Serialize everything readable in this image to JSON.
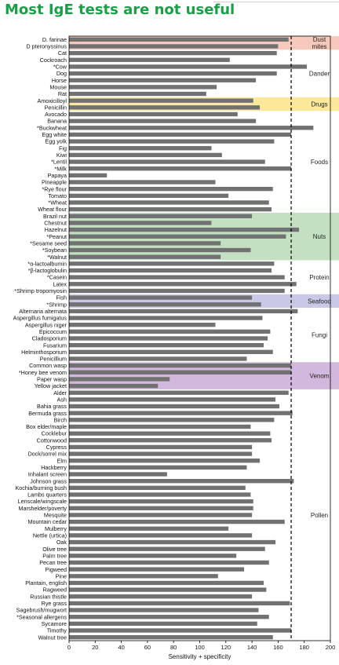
{
  "title": "Most IgE tests are not useful",
  "colors": {
    "title": "#1a9f48",
    "bar": "#717171",
    "dust_mites": "#f7c8bc",
    "drugs": "#fbe89a",
    "nuts": "#c3e1c2",
    "seafood": "#c9c8e6",
    "venom": "#d2b8dc",
    "reference_line": "#000000"
  },
  "chart_data": {
    "type": "bar",
    "orientation": "horizontal",
    "xlabel": "Sensitivity + specificity",
    "ylabel": "",
    "xlim": [
      0,
      200
    ],
    "xticks": [
      0,
      20,
      40,
      60,
      80,
      100,
      120,
      140,
      160,
      180,
      200
    ],
    "reference_line": 170,
    "categories": [
      "D. farinae",
      "D pteronyssinus",
      "Cat",
      "Cockroach",
      "*Cow",
      "Dog",
      "Horse",
      "Mouse",
      "Rat",
      "Amoxicilloyl",
      "Penicillin",
      "Avocado",
      "Banana",
      "*Buckwheat",
      "Egg white",
      "Egg yolk",
      "Fig",
      "Kiwi",
      "*Lentil",
      "*Milk",
      "Papaya",
      "Pineapple",
      "*Rye flour",
      "Tomato",
      "*Wheat",
      "Wheat flour",
      "Brazil nut",
      "Chestnut",
      "Hazelnut",
      "*Peanut",
      "*Sesame seed",
      "*Soybean",
      "*Walnut",
      "*α-lactoalbumin",
      "*β-lactoglobulin",
      "*Casein",
      "Latex",
      "*Shrimp tropomyosin",
      "Fish",
      "*Shrimp",
      "Alternaria alternata",
      "Aspergillus fumigatus",
      "Aspergillus niger",
      "Epicoccum",
      "Cladosporium",
      "Fusarium",
      "Helminthosporium",
      "Penicillium",
      "Common wasp",
      "*Honey bee venom",
      "Paper wasp",
      "Yellow jacket",
      "Alder",
      "Ash",
      "Bahia grass",
      "Bermuda grass",
      "Birch",
      "Box elder/maple",
      "Cocklebur",
      "Cottonwood",
      "Cypress",
      "Dock/sorrel mix",
      "Elm",
      "Hackberry",
      "Inhalant screen",
      "Johnson grass",
      "Kochia/burning bush",
      "Lambs quarters",
      "Lenscale/wingscale",
      "Marshelder/poverty",
      "Mesquite",
      "Mountain cedar",
      "Mulberry",
      "Nettle (urtica)",
      "Oak",
      "Olive tree",
      "Palm tree",
      "Pecan tree",
      "Pigweed",
      "Pine",
      "Plantain, english",
      "Ragweed",
      "Russian thistle",
      "Rye grass",
      "Sagebrush/mugwort",
      "*Seasonal allergens",
      "Sycamore",
      "Timothy",
      "Walnut tree"
    ],
    "values": [
      168,
      160,
      159,
      123,
      182,
      159,
      143,
      113,
      105,
      141,
      146,
      129,
      143,
      187,
      170,
      157,
      109,
      117,
      150,
      170,
      29,
      112,
      156,
      122,
      153,
      155,
      140,
      109,
      176,
      166,
      116,
      139,
      116,
      157,
      155,
      165,
      174,
      165,
      140,
      147,
      175,
      148,
      112,
      154,
      152,
      149,
      156,
      136,
      170,
      170,
      77,
      68,
      168,
      158,
      161,
      171,
      157,
      139,
      154,
      155,
      140,
      140,
      146,
      136,
      75,
      172,
      135,
      139,
      141,
      141,
      140,
      165,
      122,
      140,
      158,
      150,
      128,
      153,
      134,
      114,
      149,
      151,
      140,
      169,
      145,
      153,
      144,
      170,
      156
    ],
    "groups": [
      {
        "name": "Dust mites",
        "label_lines": [
          "Dust",
          "mites"
        ],
        "from": 0,
        "to": 1,
        "color_key": "dust_mites"
      },
      {
        "name": "Dander",
        "label_lines": [
          "Dander"
        ],
        "from": 2,
        "to": 8,
        "color_key": ""
      },
      {
        "name": "Drugs",
        "label_lines": [
          "Drugs"
        ],
        "from": 9,
        "to": 10,
        "color_key": "drugs"
      },
      {
        "name": "Foods",
        "label_lines": [
          "Foods"
        ],
        "from": 11,
        "to": 25,
        "color_key": ""
      },
      {
        "name": "Nuts",
        "label_lines": [
          "Nuts"
        ],
        "from": 26,
        "to": 32,
        "color_key": "nuts"
      },
      {
        "name": "Protein",
        "label_lines": [
          "Protein"
        ],
        "from": 33,
        "to": 37,
        "color_key": ""
      },
      {
        "name": "Seafood",
        "label_lines": [
          "Seafood"
        ],
        "from": 38,
        "to": 39,
        "color_key": "seafood"
      },
      {
        "name": "Fungi",
        "label_lines": [
          "Fungi"
        ],
        "from": 40,
        "to": 47,
        "color_key": ""
      },
      {
        "name": "Venom",
        "label_lines": [
          "Venom"
        ],
        "from": 48,
        "to": 51,
        "color_key": "venom"
      },
      {
        "name": "Pollen",
        "label_lines": [
          "Pollen"
        ],
        "from": 52,
        "to": 88,
        "color_key": ""
      }
    ],
    "grid": false,
    "legend": "none"
  }
}
